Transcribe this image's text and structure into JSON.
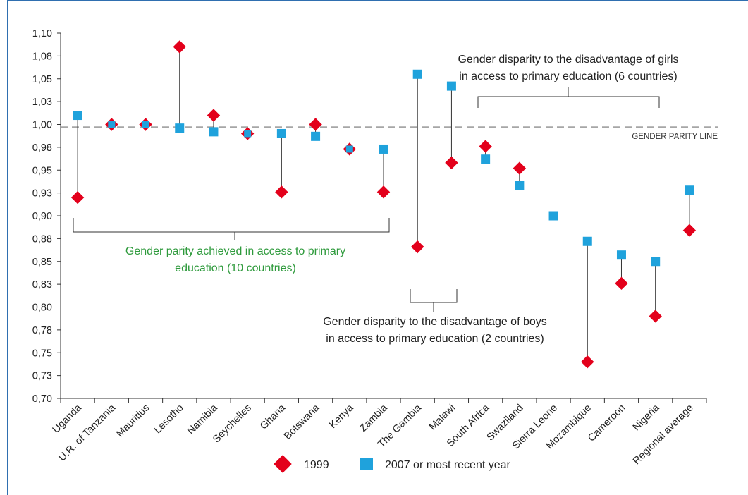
{
  "chart_data": {
    "type": "scatter",
    "categories": [
      "Uganda",
      "U.R. of Tanzania",
      "Mauritius",
      "Lesotho",
      "Namibia",
      "Seychelles",
      "Ghana",
      "Botswana",
      "Kenya",
      "Zambia",
      "The Gambia",
      "Malawi",
      "South Africa",
      "Swaziland",
      "Sierra Leone",
      "Mozambique",
      "Cameroon",
      "Nigeria",
      "Regional average"
    ],
    "series": [
      {
        "name": "1999",
        "values": [
          0.92,
          1.0,
          1.0,
          1.085,
          1.01,
          0.99,
          0.926,
          1.0,
          0.973,
          0.926,
          0.866,
          0.958,
          0.976,
          0.952,
          null,
          0.74,
          0.826,
          0.79,
          0.884
        ]
      },
      {
        "name": "2007 or most recent year",
        "values": [
          1.01,
          1.0,
          1.0,
          0.996,
          0.992,
          0.99,
          0.99,
          0.987,
          0.973,
          0.973,
          1.055,
          1.042,
          0.962,
          0.933,
          0.9,
          0.872,
          0.857,
          0.85,
          0.928
        ]
      }
    ],
    "ylim": [
      0.7,
      1.1
    ],
    "yticks": [
      "0,70",
      "0,73",
      "0,75",
      "0,78",
      "0,80",
      "0,83",
      "0,85",
      "0,88",
      "0,90",
      "0,93",
      "0,95",
      "0,98",
      "1,00",
      "1,03",
      "1,05",
      "1,08",
      "1,10"
    ],
    "legend_position": "bottom",
    "parity_line": {
      "value": 1.0,
      "label": "GENDER PARITY LINE"
    },
    "annotations": {
      "parity_line1": "Gender parity achieved in access to primary",
      "parity_line2": "education (10 countries)",
      "boys_line1": "Gender disparity to the disadvantage of boys",
      "boys_line2": "in access to primary education (2 countries)",
      "girls_line1": "Gender disparity to the disadvantage of girls",
      "girls_line2": "in access to primary education (6 countries)"
    },
    "colors": {
      "series_1999": "#e3001b",
      "series_2007": "#1fa2dc",
      "parity_text": "#2e9a3c",
      "axis": "#333333",
      "parity_line": "#a6a6a6",
      "frame": "#2f6fb0"
    }
  }
}
